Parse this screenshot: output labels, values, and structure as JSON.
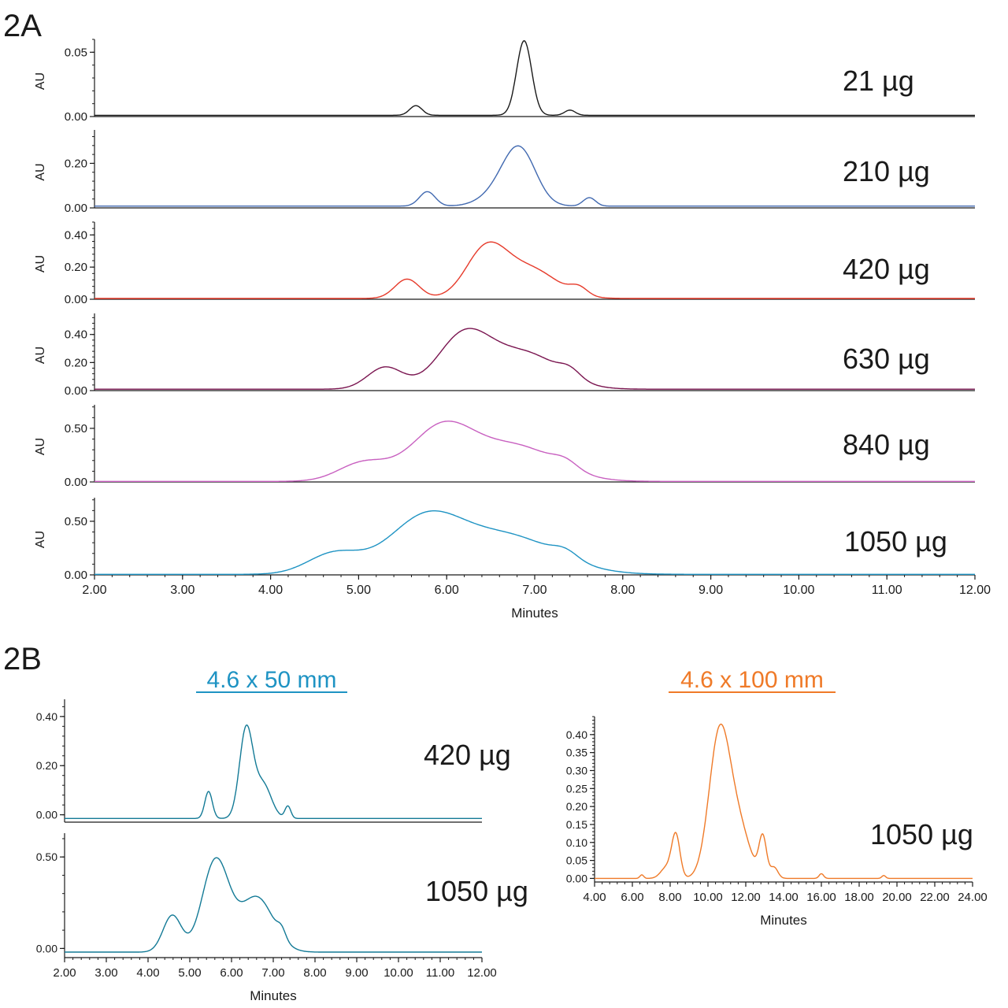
{
  "panel_a": {
    "label": "2A"
  },
  "panel_b": {
    "label": "2B",
    "left_title": "4.6 x 50 mm",
    "right_title": "4.6 x 100 mm"
  },
  "colors": {
    "black": "#1a1a1a",
    "blue": "#4169b0",
    "red": "#e63a2a",
    "purple": "#7a1550",
    "pink": "#c860c0",
    "cyan": "#1e93c3",
    "dark_cyan": "#137a96",
    "orange": "#ef7a28"
  },
  "chart_data": [
    {
      "id": "2A-21",
      "type": "line",
      "panel": "2A",
      "label": "21 µg",
      "ylabel": "AU",
      "color_key": "black",
      "xlim": [
        2.0,
        12.0
      ],
      "ylim": [
        0.0,
        0.06
      ],
      "yticks": [
        "0.00",
        "0.05"
      ],
      "ytick_values": [
        0.0,
        0.05
      ],
      "baseline": 0.001,
      "peaks": [
        [
          5.65,
          0.0075,
          0.07
        ],
        [
          6.88,
          0.058,
          0.085
        ],
        [
          7.4,
          0.004,
          0.06
        ]
      ],
      "xticks": [],
      "xlabel": ""
    },
    {
      "id": "2A-210",
      "type": "line",
      "panel": "2A",
      "label": "210 µg",
      "ylabel": "AU",
      "color_key": "blue",
      "xlim": [
        2.0,
        12.0
      ],
      "ylim": [
        0.0,
        0.35
      ],
      "yticks": [
        "0.00",
        "0.20"
      ],
      "ytick_values": [
        0.0,
        0.2
      ],
      "baseline": 0.008,
      "peaks": [
        [
          5.78,
          0.065,
          0.09
        ],
        [
          6.66,
          0.08,
          0.22
        ],
        [
          6.84,
          0.21,
          0.18
        ],
        [
          7.62,
          0.038,
          0.07
        ]
      ],
      "xticks": [],
      "xlabel": ""
    },
    {
      "id": "2A-420",
      "type": "line",
      "panel": "2A",
      "label": "420 µg",
      "ylabel": "AU",
      "color_key": "red",
      "xlim": [
        2.0,
        12.0
      ],
      "ylim": [
        0.0,
        0.48
      ],
      "yticks": [
        "0.00",
        "0.20",
        "0.40"
      ],
      "ytick_values": [
        0.0,
        0.2,
        0.4
      ],
      "baseline": 0.005,
      "peaks": [
        [
          5.55,
          0.12,
          0.14
        ],
        [
          6.45,
          0.3,
          0.23
        ],
        [
          6.95,
          0.18,
          0.3
        ],
        [
          7.5,
          0.05,
          0.1
        ]
      ],
      "xticks": [],
      "xlabel": ""
    },
    {
      "id": "2A-630",
      "type": "line",
      "panel": "2A",
      "label": "630 µg",
      "ylabel": "AU",
      "color_key": "purple",
      "xlim": [
        2.0,
        12.0
      ],
      "ylim": [
        0.0,
        0.55
      ],
      "yticks": [
        "0.00",
        "0.20",
        "0.40"
      ],
      "ytick_values": [
        0.0,
        0.2,
        0.4
      ],
      "baseline": 0.01,
      "peaks": [
        [
          5.3,
          0.155,
          0.2
        ],
        [
          6.2,
          0.38,
          0.3
        ],
        [
          6.9,
          0.25,
          0.38
        ],
        [
          7.4,
          0.06,
          0.12
        ]
      ],
      "xticks": [],
      "xlabel": ""
    },
    {
      "id": "2A-840",
      "type": "line",
      "panel": "2A",
      "label": "840 µg",
      "ylabel": "AU",
      "color_key": "pink",
      "xlim": [
        2.0,
        12.0
      ],
      "ylim": [
        0.0,
        0.72
      ],
      "yticks": [
        "0.00",
        "0.50"
      ],
      "ytick_values": [
        0.0,
        0.5
      ],
      "baseline": 0.005,
      "peaks": [
        [
          5.05,
          0.17,
          0.28
        ],
        [
          5.95,
          0.5,
          0.36
        ],
        [
          6.8,
          0.32,
          0.45
        ],
        [
          7.35,
          0.07,
          0.14
        ]
      ],
      "xticks": [],
      "xlabel": ""
    },
    {
      "id": "2A-1050",
      "type": "line",
      "panel": "2A",
      "label": "1050 µg",
      "ylabel": "AU",
      "color_key": "cyan",
      "xlim": [
        2.0,
        12.0
      ],
      "ylim": [
        0.0,
        0.72
      ],
      "yticks": [
        "0.00",
        "0.50"
      ],
      "ytick_values": [
        0.0,
        0.5
      ],
      "baseline": 0.005,
      "peaks": [
        [
          4.72,
          0.19,
          0.3
        ],
        [
          5.75,
          0.5,
          0.42
        ],
        [
          6.7,
          0.35,
          0.55
        ],
        [
          7.35,
          0.07,
          0.14
        ]
      ],
      "xticks": [
        "2.00",
        "3.00",
        "4.00",
        "5.00",
        "6.00",
        "7.00",
        "8.00",
        "9.00",
        "10.00",
        "11.00",
        "12.00"
      ],
      "xtick_values": [
        2,
        3,
        4,
        5,
        6,
        7,
        8,
        9,
        10,
        11,
        12
      ],
      "xlabel": "Minutes"
    },
    {
      "id": "2B-50-420",
      "type": "line",
      "panel": "2B",
      "label": "420 µg",
      "ylabel": "",
      "color_key": "dark_cyan",
      "xlim": [
        2.0,
        12.0
      ],
      "ylim": [
        -0.03,
        0.47
      ],
      "yticks": [
        "0.00",
        "0.20",
        "0.40"
      ],
      "ytick_values": [
        0.0,
        0.2,
        0.4
      ],
      "baseline": -0.015,
      "peaks": [
        [
          5.45,
          0.11,
          0.09
        ],
        [
          6.35,
          0.36,
          0.16
        ],
        [
          6.75,
          0.14,
          0.2
        ],
        [
          7.35,
          0.05,
          0.07
        ]
      ],
      "xticks": [],
      "xlabel": ""
    },
    {
      "id": "2B-50-1050",
      "type": "line",
      "panel": "2B",
      "label": "1050 µg",
      "ylabel": "",
      "color_key": "dark_cyan",
      "xlim": [
        2.0,
        12.0
      ],
      "ylim": [
        -0.05,
        0.63
      ],
      "yticks": [
        "0.00",
        "0.50"
      ],
      "ytick_values": [
        0.0,
        0.5
      ],
      "baseline": -0.02,
      "peaks": [
        [
          4.58,
          0.2,
          0.22
        ],
        [
          5.62,
          0.5,
          0.32
        ],
        [
          6.6,
          0.3,
          0.4
        ],
        [
          7.2,
          0.05,
          0.1
        ]
      ],
      "xticks": [
        "2.00",
        "3.00",
        "4.00",
        "5.00",
        "6.00",
        "7.00",
        "8.00",
        "9.00",
        "10.00",
        "11.00",
        "12.00"
      ],
      "xtick_values": [
        2,
        3,
        4,
        5,
        6,
        7,
        8,
        9,
        10,
        11,
        12
      ],
      "xlabel": "Minutes"
    },
    {
      "id": "2B-100-1050",
      "type": "line",
      "panel": "2B",
      "label": "1050 µg",
      "ylabel": "",
      "color_key": "orange",
      "xlim": [
        4.0,
        24.0
      ],
      "ylim": [
        -0.01,
        0.45
      ],
      "yticks": [
        "0.00",
        "0.05",
        "0.10",
        "0.15",
        "0.20",
        "0.25",
        "0.30",
        "0.35",
        "0.40"
      ],
      "ytick_values": [
        0.0,
        0.05,
        0.1,
        0.15,
        0.2,
        0.25,
        0.3,
        0.35,
        0.4
      ],
      "baseline": 0.0,
      "peaks": [
        [
          6.5,
          0.01,
          0.1
        ],
        [
          7.8,
          0.03,
          0.3
        ],
        [
          8.3,
          0.12,
          0.22
        ],
        [
          10.6,
          0.39,
          0.55
        ],
        [
          11.6,
          0.14,
          0.6
        ],
        [
          12.9,
          0.11,
          0.2
        ],
        [
          13.5,
          0.03,
          0.2
        ],
        [
          16.0,
          0.013,
          0.12
        ],
        [
          19.3,
          0.008,
          0.1
        ]
      ],
      "xticks": [
        "4.00",
        "6.00",
        "8.00",
        "10.00",
        "12.00",
        "14.00",
        "16.00",
        "18.00",
        "20.00",
        "22.00",
        "24.00"
      ],
      "xtick_values": [
        4,
        6,
        8,
        10,
        12,
        14,
        16,
        18,
        20,
        22,
        24
      ],
      "xlabel": "Minutes"
    }
  ]
}
